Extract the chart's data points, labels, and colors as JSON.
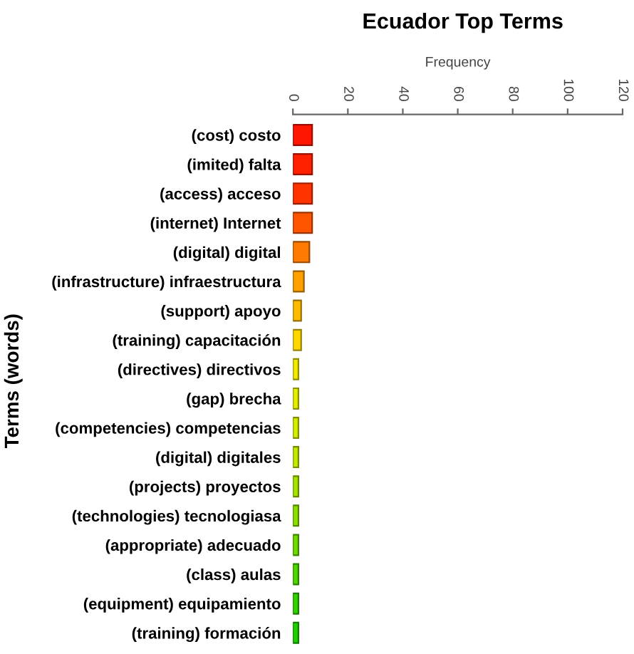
{
  "chart_data": {
    "type": "bar",
    "orientation": "horizontal",
    "title": "Ecuador Top Terms",
    "xlabel": "Frequency",
    "ylabel": "Terms (words)",
    "categories": [
      "(cost) costo",
      "(imited) falta",
      "(access) acceso",
      "(internet) Internet",
      "(digital) digital",
      "(infrastructure) infraestructura",
      "(support) apoyo",
      "(training) capacitación",
      "(directives) directivos",
      "(gap) brecha",
      "(competencies) competencias",
      "(digital) digitales",
      "(projects) proyectos",
      "(technologies) tecnologiasa",
      "(appropriate) adecuado",
      "(class) aulas",
      "(equipment) equipamiento",
      "(training) formación"
    ],
    "values": [
      7,
      7,
      7,
      7,
      6,
      4,
      3,
      3,
      2,
      2,
      2,
      2,
      2,
      2,
      2,
      2,
      2,
      2
    ],
    "colors": [
      "#ff1500",
      "#ff2000",
      "#ff3300",
      "#ff5500",
      "#ff7a00",
      "#ff9f00",
      "#ffbb00",
      "#ffd800",
      "#f2ea00",
      "#e6ee00",
      "#d4ee00",
      "#c2ea00",
      "#a6e400",
      "#8ce000",
      "#6edc00",
      "#4cd800",
      "#30d400",
      "#1ed000"
    ],
    "xlim": [
      0,
      120
    ],
    "xticks": [
      0,
      20,
      40,
      60,
      80,
      100,
      120
    ],
    "grid": false,
    "legend": false
  }
}
